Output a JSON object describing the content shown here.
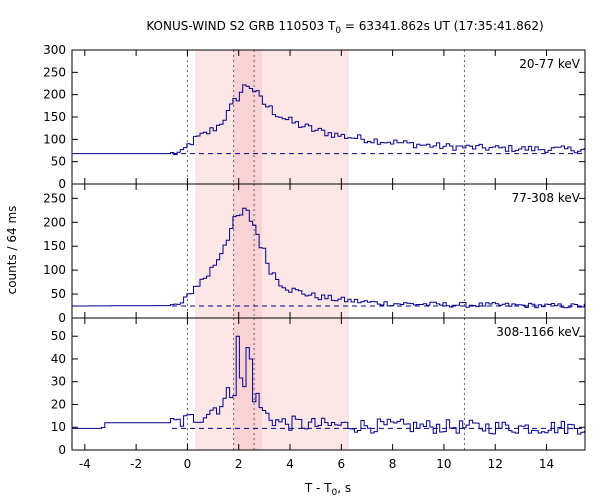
{
  "chart_data": {
    "type": "line",
    "title": "KONUS-WIND S2 GRB 110503 T",
    "title_sub": "0",
    "title_rest": " = 63341.862s UT (17:35:41.862)",
    "xlabel": "T - T",
    "xlabel_sub": "0",
    "xlabel_rest": ", s",
    "ylabel": "counts / 64 ms",
    "xlim": [
      -4.5,
      15.5
    ],
    "x_ticks": [
      -4,
      -2,
      0,
      2,
      4,
      6,
      8,
      10,
      12,
      14
    ],
    "x_tick_labels": [
      "-4",
      "-2",
      "0",
      "2",
      "4",
      "6",
      "8",
      "10",
      "12",
      "14"
    ],
    "shaded_intervals": [
      {
        "range": [
          0.3,
          6.3
        ],
        "color": "#fde6e6"
      },
      {
        "range": [
          1.8,
          2.9
        ],
        "color": "#f9d3d5"
      }
    ],
    "vertical_markers": [
      0,
      1.8,
      2.6,
      10.8
    ],
    "colors": {
      "series": "#00008b",
      "background_line": "#00008b",
      "marker": "#666666"
    },
    "panels": [
      {
        "label": "20-77 keV",
        "ylim": [
          0,
          300
        ],
        "y_ticks": [
          0,
          50,
          100,
          150,
          200,
          250,
          300
        ],
        "y_tick_labels": [
          "0",
          "50",
          "100",
          "150",
          "200",
          "250",
          "300"
        ],
        "background_level": 68,
        "keypoints": [
          [
            -4.5,
            68
          ],
          [
            -0.6,
            68
          ],
          [
            -0.2,
            70
          ],
          [
            0,
            85
          ],
          [
            0.3,
            100
          ],
          [
            0.8,
            115
          ],
          [
            1.2,
            130
          ],
          [
            1.6,
            160
          ],
          [
            1.9,
            190
          ],
          [
            2.2,
            215
          ],
          [
            2.4,
            225
          ],
          [
            2.6,
            210
          ],
          [
            2.9,
            185
          ],
          [
            3.3,
            165
          ],
          [
            4.0,
            140
          ],
          [
            5.0,
            120
          ],
          [
            6.0,
            108
          ],
          [
            7.0,
            100
          ],
          [
            8.0,
            94
          ],
          [
            9.0,
            88
          ],
          [
            10.0,
            84
          ],
          [
            11.0,
            82
          ],
          [
            12.0,
            80
          ],
          [
            14.0,
            78
          ],
          [
            15.5,
            77
          ]
        ],
        "noise": 7,
        "step": 0.128
      },
      {
        "label": "77-308 keV",
        "ylim": [
          0,
          280
        ],
        "y_ticks": [
          0,
          50,
          100,
          150,
          200,
          250
        ],
        "y_tick_labels": [
          "0",
          "50",
          "100",
          "150",
          "200",
          "250"
        ],
        "background_level": 25,
        "keypoints": [
          [
            -4.5,
            25
          ],
          [
            -0.6,
            26
          ],
          [
            -0.2,
            30
          ],
          [
            0,
            45
          ],
          [
            0.3,
            65
          ],
          [
            0.8,
            90
          ],
          [
            1.2,
            125
          ],
          [
            1.6,
            175
          ],
          [
            1.9,
            205
          ],
          [
            2.2,
            220
          ],
          [
            2.4,
            215
          ],
          [
            2.6,
            195
          ],
          [
            2.9,
            150
          ],
          [
            3.2,
            105
          ],
          [
            3.6,
            75
          ],
          [
            4.0,
            60
          ],
          [
            5.0,
            45
          ],
          [
            6.0,
            38
          ],
          [
            7.0,
            33
          ],
          [
            8.0,
            30
          ],
          [
            10.0,
            28
          ],
          [
            12.0,
            27
          ],
          [
            15.5,
            25
          ]
        ],
        "noise": 5,
        "step": 0.128
      },
      {
        "label": "308-1166 keV",
        "ylim": [
          0,
          58
        ],
        "y_ticks": [
          0,
          10,
          20,
          30,
          40,
          50
        ],
        "y_tick_labels": [
          "0",
          "10",
          "20",
          "30",
          "40",
          "50"
        ],
        "background_level": 9.5,
        "keypoints": [
          [
            -4.5,
            9.5
          ],
          [
            -3.3,
            9.5
          ],
          [
            -3.2,
            12
          ],
          [
            -0.4,
            12
          ],
          [
            0,
            13
          ],
          [
            0.5,
            15
          ],
          [
            1.0,
            18
          ],
          [
            1.5,
            22
          ],
          [
            1.9,
            30
          ],
          [
            2.2,
            28
          ],
          [
            2.6,
            25
          ],
          [
            3.0,
            16
          ],
          [
            3.6,
            12
          ],
          [
            5.0,
            11
          ],
          [
            8.0,
            10.5
          ],
          [
            12.0,
            10
          ],
          [
            15.5,
            10
          ]
        ],
        "spikes": [
          [
            1.95,
            50
          ],
          [
            2.3,
            45
          ],
          [
            2.45,
            40
          ]
        ],
        "noise": 3,
        "step": 0.128
      }
    ]
  }
}
